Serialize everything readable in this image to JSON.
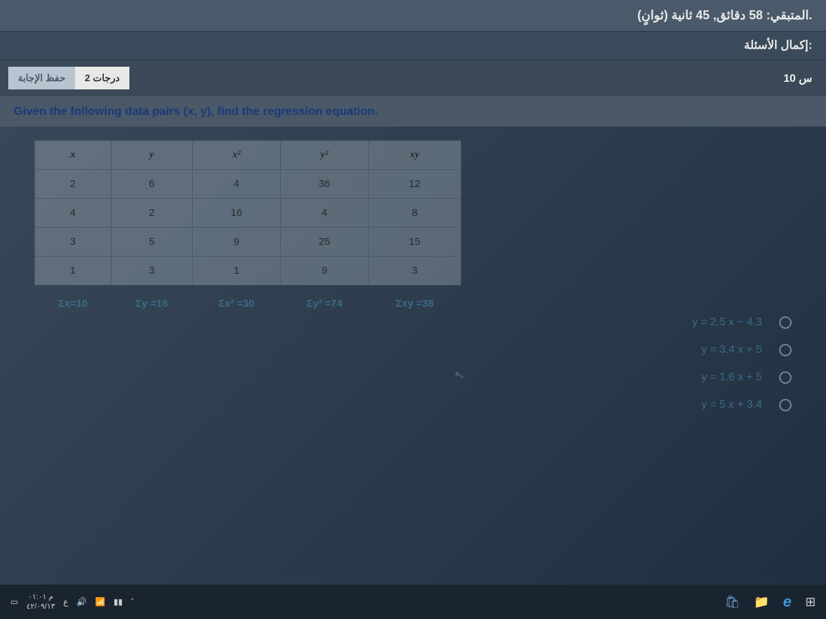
{
  "header": {
    "timer": "المتبقي: 58 دقائق, 45 ثانية (ثوانٍ).",
    "completion": "إكمال الأسئلة:",
    "save_btn": "حفظ الإجابة",
    "points": "2 درجات",
    "question_number": "س 10"
  },
  "question": {
    "text": "Given the following data pairs (x, y), find the regression equation."
  },
  "table": {
    "headers": [
      "x",
      "y",
      "x²",
      "y²",
      "xy"
    ],
    "rows": [
      [
        "2",
        "6",
        "4",
        "36",
        "12"
      ],
      [
        "4",
        "2",
        "16",
        "4",
        "8"
      ],
      [
        "3",
        "5",
        "9",
        "25",
        "15"
      ],
      [
        "1",
        "3",
        "1",
        "9",
        "3"
      ]
    ],
    "sums": [
      "Σx=10",
      "Σy =16",
      "Σx² =30",
      "Σy² =74",
      "Σxy =38"
    ]
  },
  "answers": {
    "opt1": "y = 2.5 x − 4.3",
    "opt2": "y = 3.4 x + 5",
    "opt3": "y = 1.6 x + 5",
    "opt4": "y = 5 x + 3.4"
  },
  "taskbar": {
    "time": "م ٠١:٠١",
    "date": "٤٢/٠٩/١٣",
    "lang": "ع"
  }
}
